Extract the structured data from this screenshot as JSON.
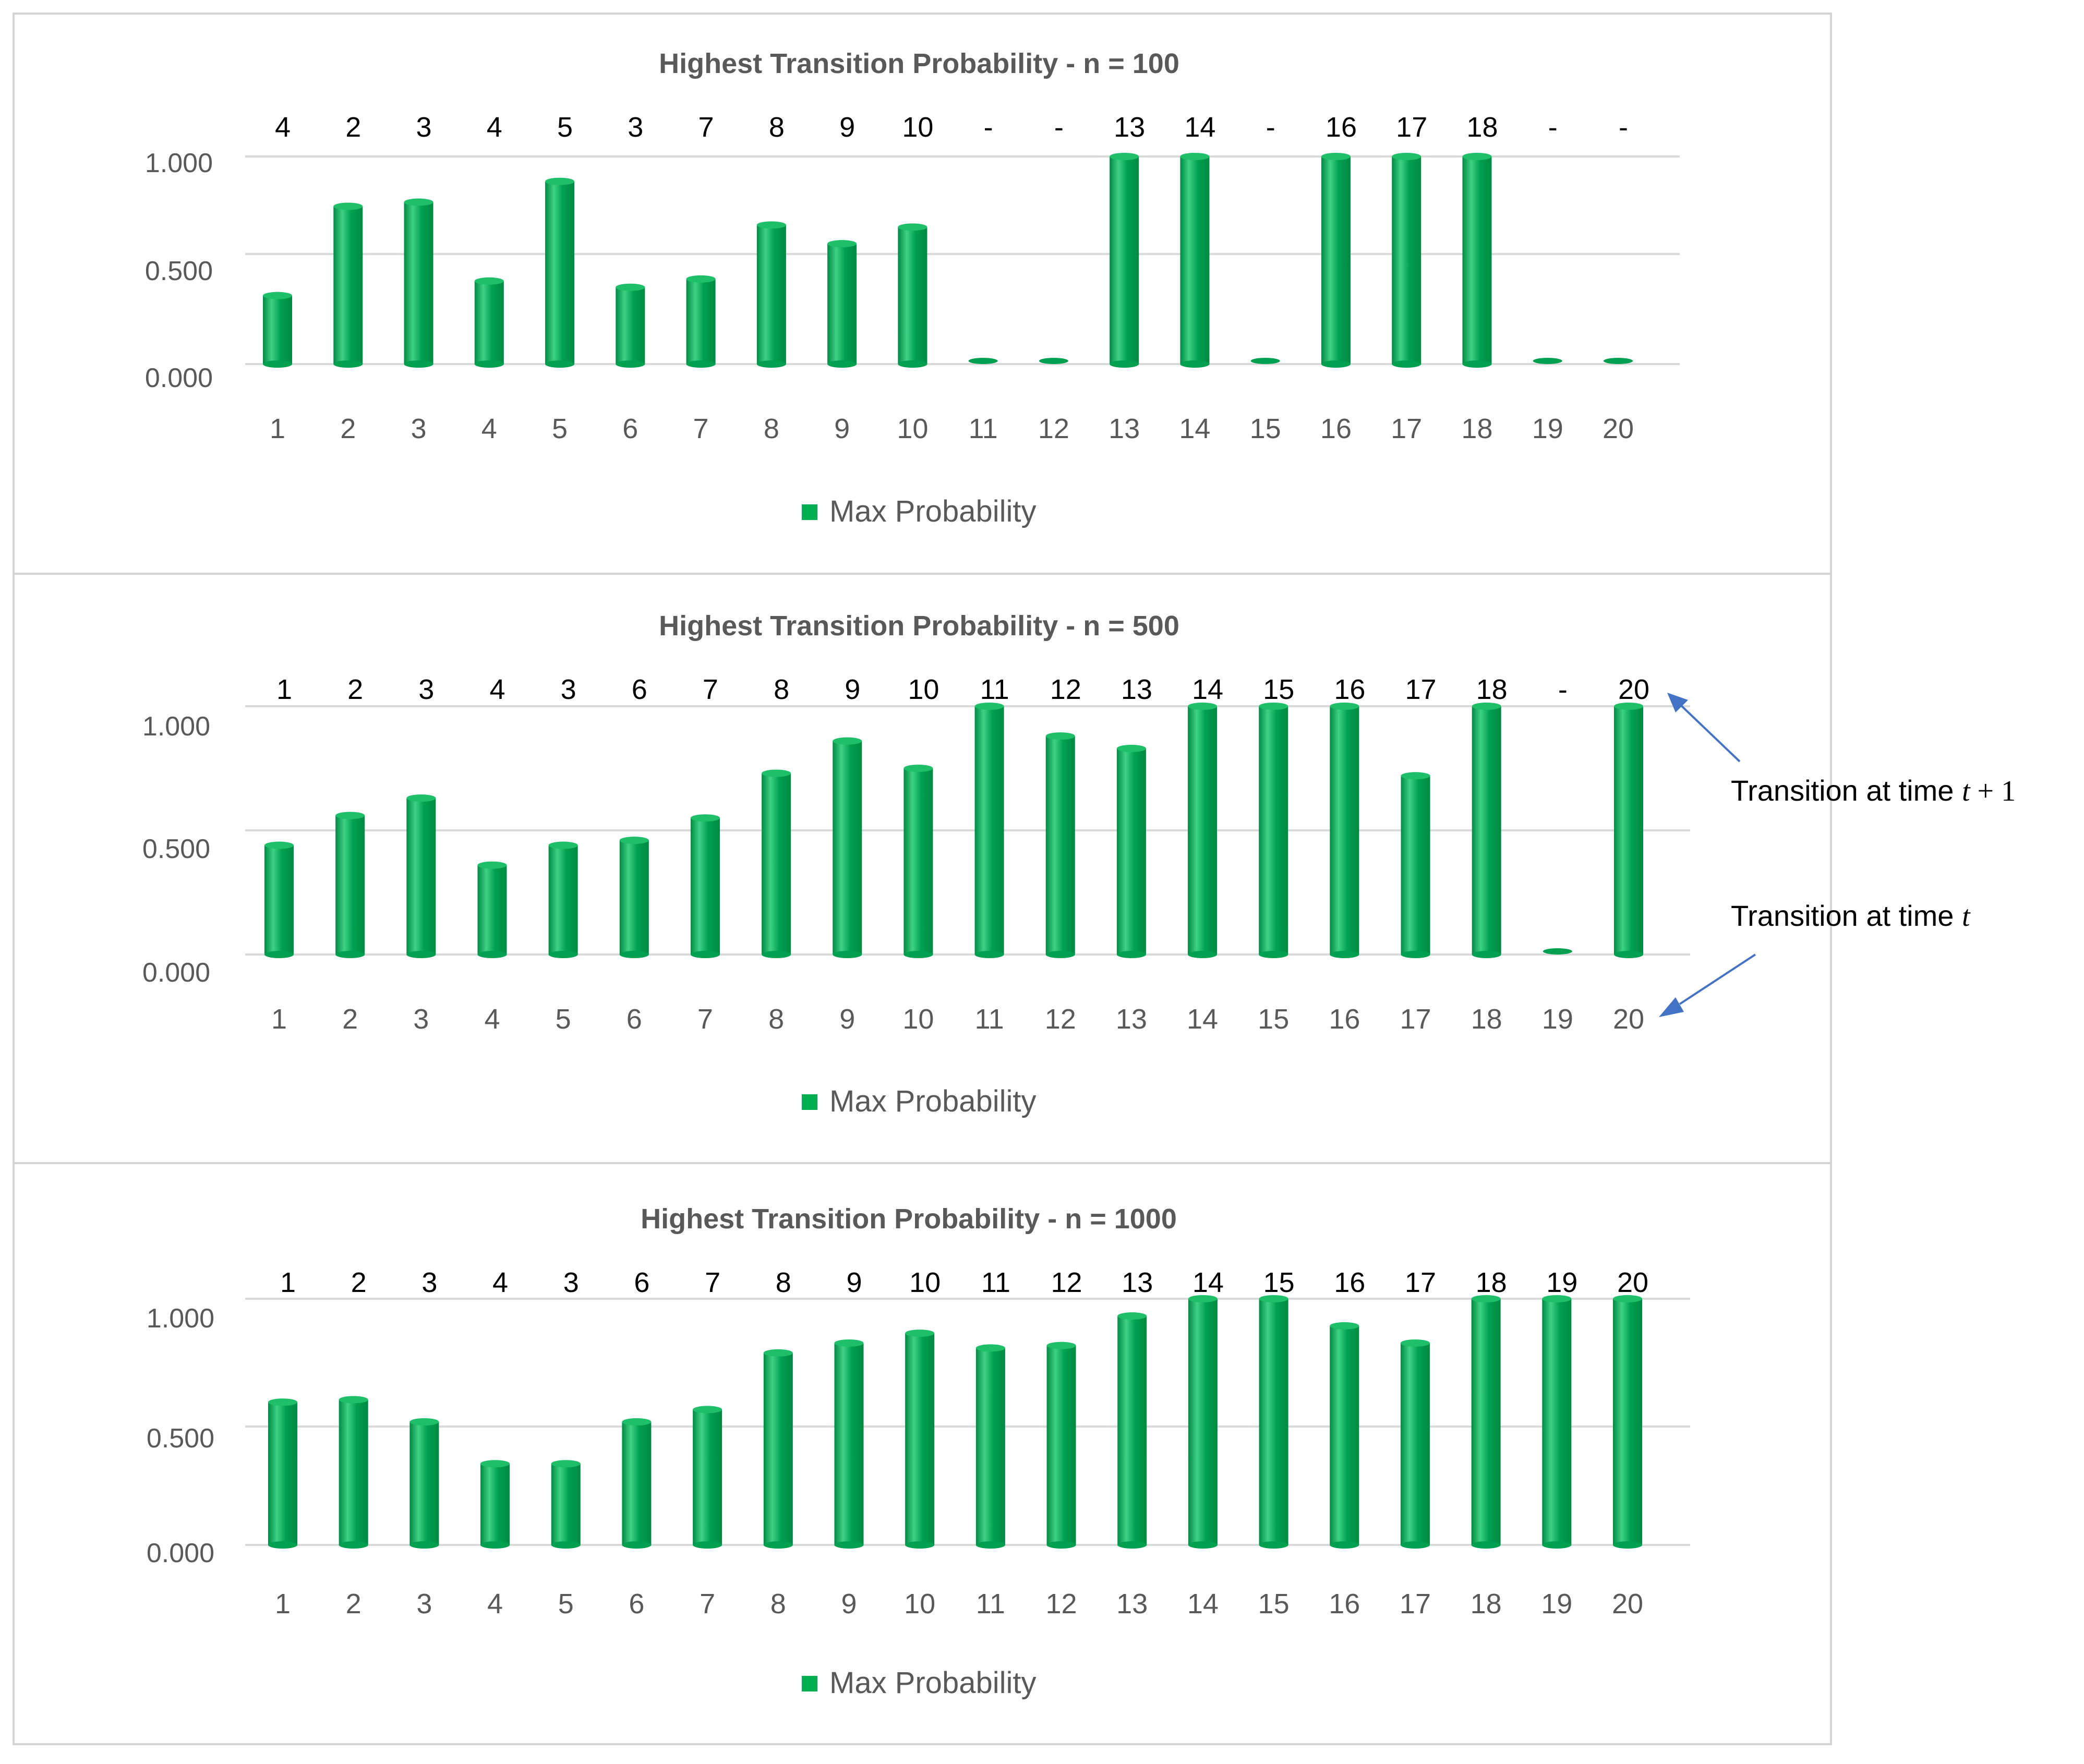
{
  "colors": {
    "bar_side": "#00a050",
    "bar_edge": "#008a43",
    "bar_highlight": "#3fd184",
    "bar_top": "#1fbf6a",
    "legend_marker": "#00b050",
    "arrow": "#4472c4"
  },
  "legend": {
    "label": "Max Probability"
  },
  "annotations": {
    "upper": {
      "text": "Transition at time ",
      "var": "t",
      "op": " + ",
      "num": "1"
    },
    "lower": {
      "text": "Transition at time ",
      "var": "t"
    }
  },
  "chart_data": [
    {
      "type": "bar",
      "title": "Highest Transition Probability - n = 100",
      "xlabel": "",
      "ylabel": "",
      "ylim": [
        0,
        1
      ],
      "y_ticks": [
        "0.000",
        "0.500",
        "1.000"
      ],
      "categories": [
        "1",
        "2",
        "3",
        "4",
        "5",
        "6",
        "7",
        "8",
        "9",
        "10",
        "11",
        "12",
        "13",
        "14",
        "15",
        "16",
        "17",
        "18",
        "19",
        "20"
      ],
      "series": [
        {
          "name": "Max Probability",
          "values": [
            0.33,
            0.76,
            0.78,
            0.4,
            0.88,
            0.37,
            0.41,
            0.67,
            0.58,
            0.66,
            0,
            0,
            1.0,
            1.0,
            0,
            1.0,
            1.0,
            1.0,
            0,
            0
          ]
        }
      ],
      "data_labels": [
        "4",
        "2",
        "3",
        "4",
        "5",
        "3",
        "7",
        "8",
        "9",
        "10",
        "-",
        "-",
        "13",
        "14",
        "-",
        "16",
        "17",
        "18",
        "-",
        "-"
      ]
    },
    {
      "type": "bar",
      "title": "Highest Transition Probability - n = 500",
      "xlabel": "",
      "ylabel": "",
      "ylim": [
        0,
        1
      ],
      "y_ticks": [
        "0.000",
        "0.500",
        "1.000"
      ],
      "categories": [
        "1",
        "2",
        "3",
        "4",
        "5",
        "6",
        "7",
        "8",
        "9",
        "10",
        "11",
        "12",
        "13",
        "14",
        "15",
        "16",
        "17",
        "18",
        "19",
        "20"
      ],
      "series": [
        {
          "name": "Max Probability",
          "values": [
            0.44,
            0.56,
            0.63,
            0.36,
            0.44,
            0.46,
            0.55,
            0.73,
            0.86,
            0.75,
            1.0,
            0.88,
            0.83,
            1.0,
            1.0,
            1.0,
            0.72,
            1.0,
            0,
            1.0
          ]
        }
      ],
      "data_labels": [
        "1",
        "2",
        "3",
        "4",
        "3",
        "6",
        "7",
        "8",
        "9",
        "10",
        "11",
        "12",
        "13",
        "14",
        "15",
        "16",
        "17",
        "18",
        "-",
        "20"
      ]
    },
    {
      "type": "bar",
      "title": "Highest Transition Probability - n = 1000",
      "xlabel": "",
      "ylabel": "",
      "ylim": [
        0,
        1
      ],
      "y_ticks": [
        "0.000",
        "0.500",
        "1.000"
      ],
      "categories": [
        "1",
        "2",
        "3",
        "4",
        "5",
        "6",
        "7",
        "8",
        "9",
        "10",
        "11",
        "12",
        "13",
        "14",
        "15",
        "16",
        "17",
        "18",
        "19",
        "20"
      ],
      "series": [
        {
          "name": "Max Probability",
          "values": [
            0.58,
            0.59,
            0.5,
            0.33,
            0.33,
            0.5,
            0.55,
            0.78,
            0.82,
            0.86,
            0.8,
            0.81,
            0.93,
            1.0,
            1.0,
            0.89,
            0.82,
            1.0,
            1.0,
            1.0
          ]
        }
      ],
      "data_labels": [
        "1",
        "2",
        "3",
        "4",
        "3",
        "6",
        "7",
        "8",
        "9",
        "10",
        "11",
        "12",
        "13",
        "14",
        "15",
        "16",
        "17",
        "18",
        "19",
        "20"
      ]
    }
  ]
}
